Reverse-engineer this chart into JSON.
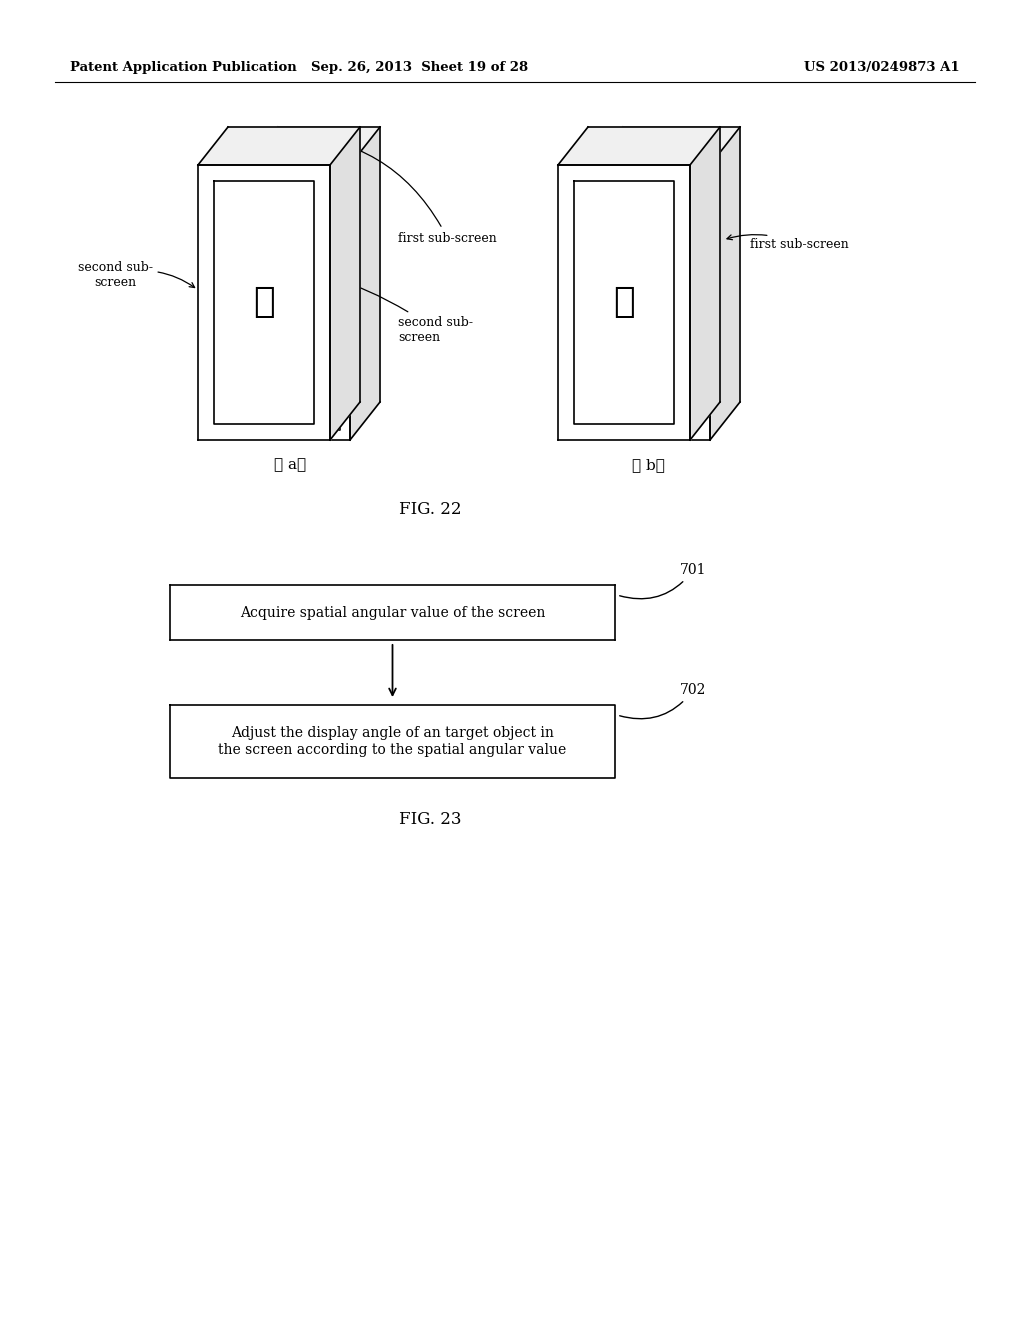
{
  "bg_color": "#ffffff",
  "header_left": "Patent Application Publication",
  "header_mid": "Sep. 26, 2013  Sheet 19 of 28",
  "header_right": "US 2013/0249873 A1",
  "fig22_label": "FIG. 22",
  "fig23_label": "FIG. 23",
  "label_a": "① a②",
  "label_b": "① b②",
  "box1_text": "Acquire spatial angular value of the screen",
  "box2_text": "Adjust the display angle of an target object in\nthe screen according to the spatial angular value",
  "ref701": "701",
  "ref702": "702",
  "second_sub_screen_left": "second sub-\nscreen",
  "first_sub_screen_mid": "first sub-screen",
  "second_sub_screen_mid": "second sub-\nscreen",
  "first_sub_screen_right": "first sub-screen",
  "char": "正"
}
